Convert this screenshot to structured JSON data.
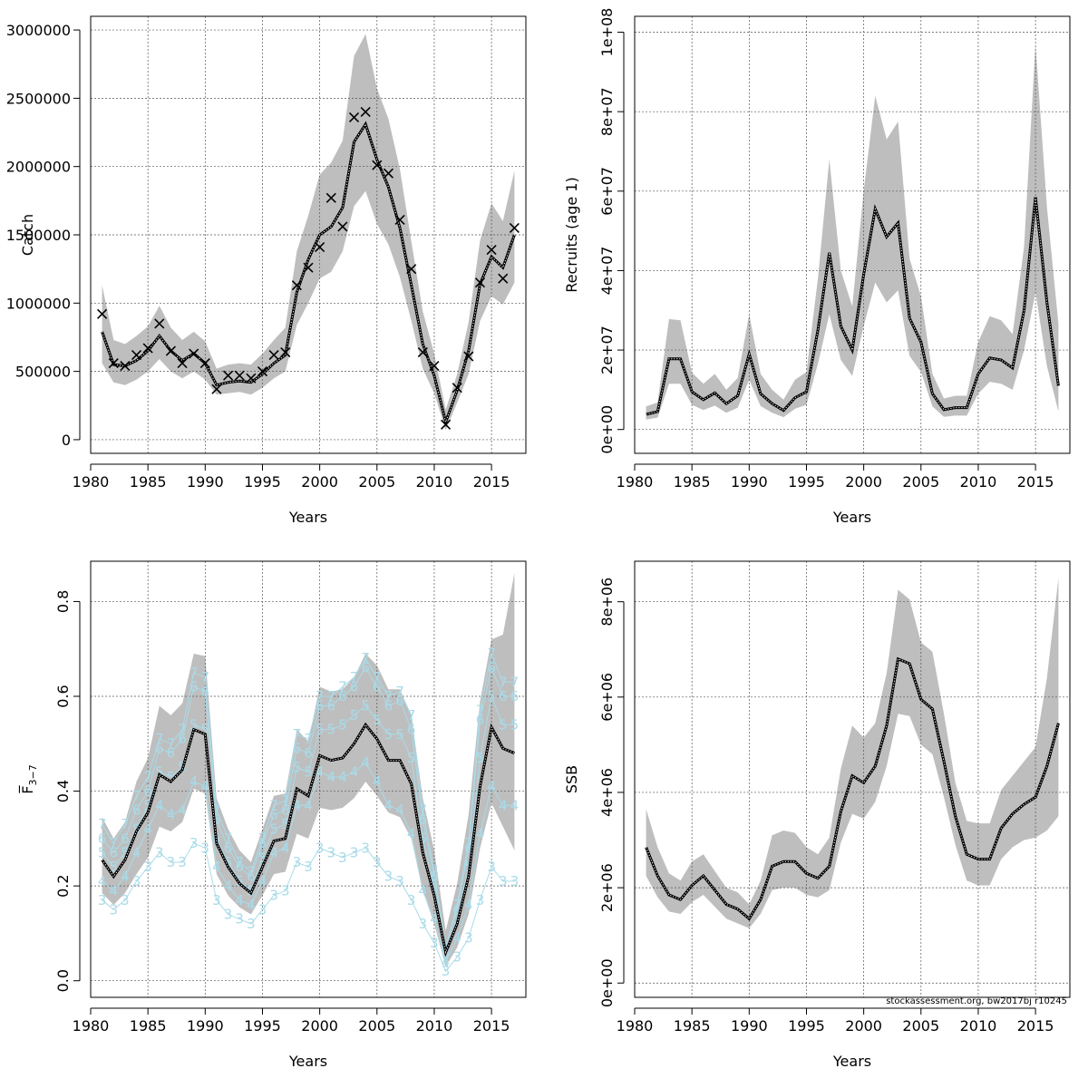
{
  "footer_note": "stockassessment.org, bw2017bj r10245",
  "chart_data": [
    {
      "type": "line",
      "xlabel": "Years",
      "ylabel": "Catch",
      "xlim": [
        1980,
        2018
      ],
      "ylim": [
        -100000,
        3100000
      ],
      "x_ticks": [
        1980,
        1985,
        1990,
        1995,
        2000,
        2005,
        2010,
        2015
      ],
      "y_ticks": [
        0,
        500000,
        1000000,
        1500000,
        2000000,
        2500000,
        3000000
      ],
      "y_tick_labels": [
        "0",
        "500000",
        "1000000",
        "1500000",
        "2000000",
        "2500000",
        "3000000"
      ],
      "grid": true,
      "x": [
        1981,
        1982,
        1983,
        1984,
        1985,
        1986,
        1987,
        1988,
        1989,
        1990,
        1991,
        1992,
        1993,
        1994,
        1995,
        1996,
        1997,
        1998,
        1999,
        2000,
        2001,
        2002,
        2003,
        2004,
        2005,
        2006,
        2007,
        2008,
        2009,
        2010,
        2011,
        2012,
        2013,
        2014,
        2015,
        2016,
        2017
      ],
      "series": [
        {
          "role": "estimate",
          "values": [
            790000,
            550000,
            540000,
            580000,
            650000,
            760000,
            650000,
            580000,
            630000,
            560000,
            400000,
            420000,
            430000,
            420000,
            480000,
            560000,
            620000,
            1080000,
            1320000,
            1500000,
            1560000,
            1700000,
            2180000,
            2310000,
            2050000,
            1850000,
            1550000,
            1130000,
            700000,
            470000,
            130000,
            360000,
            650000,
            1140000,
            1340000,
            1260000,
            1500000
          ]
        },
        {
          "role": "lower_ci",
          "values": [
            560000,
            420000,
            400000,
            440000,
            500000,
            590000,
            500000,
            450000,
            500000,
            440000,
            330000,
            340000,
            350000,
            330000,
            380000,
            450000,
            500000,
            840000,
            1000000,
            1180000,
            1230000,
            1380000,
            1710000,
            1820000,
            1580000,
            1430000,
            1190000,
            870000,
            520000,
            340000,
            70000,
            270000,
            480000,
            870000,
            1050000,
            990000,
            1150000
          ]
        },
        {
          "role": "upper_ci",
          "values": [
            1130000,
            730000,
            700000,
            760000,
            830000,
            980000,
            820000,
            730000,
            790000,
            720000,
            520000,
            550000,
            560000,
            550000,
            630000,
            730000,
            820000,
            1380000,
            1640000,
            1940000,
            2030000,
            2190000,
            2810000,
            2970000,
            2570000,
            2350000,
            1980000,
            1450000,
            940000,
            630000,
            220000,
            480000,
            860000,
            1460000,
            1730000,
            1600000,
            1970000
          ]
        },
        {
          "role": "observed",
          "values": [
            920000,
            560000,
            540000,
            620000,
            670000,
            850000,
            650000,
            560000,
            630000,
            560000,
            370000,
            470000,
            470000,
            450000,
            500000,
            620000,
            640000,
            1130000,
            1260000,
            1410000,
            1770000,
            1560000,
            2360000,
            2400000,
            2010000,
            1950000,
            1610000,
            1250000,
            640000,
            540000,
            110000,
            380000,
            610000,
            1150000,
            1390000,
            1180000,
            1550000
          ]
        }
      ]
    },
    {
      "type": "line",
      "xlabel": "Years",
      "ylabel": "Recruits (age 1)",
      "xlim": [
        1980,
        2018
      ],
      "ylim": [
        -6000000,
        104000000
      ],
      "x_ticks": [
        1980,
        1985,
        1990,
        1995,
        2000,
        2005,
        2010,
        2015
      ],
      "y_ticks": [
        0,
        20000000,
        40000000,
        60000000,
        80000000,
        100000000
      ],
      "y_tick_labels": [
        "0e+00",
        "2e+07",
        "4e+07",
        "6e+07",
        "8e+07",
        "1e+08"
      ],
      "grid": true,
      "x": [
        1981,
        1982,
        1983,
        1984,
        1985,
        1986,
        1987,
        1988,
        1989,
        1990,
        1991,
        1992,
        1993,
        1994,
        1995,
        1996,
        1997,
        1998,
        1999,
        2000,
        2001,
        2002,
        2003,
        2004,
        2005,
        2006,
        2007,
        2008,
        2009,
        2010,
        2011,
        2012,
        2013,
        2014,
        2015,
        2016,
        2017
      ],
      "series": [
        {
          "role": "estimate",
          "values": [
            3800000,
            4500000,
            17800000,
            17800000,
            9500000,
            7500000,
            9200000,
            6500000,
            8500000,
            19000000,
            9000000,
            6500000,
            4800000,
            8000000,
            9500000,
            25000000,
            44500000,
            26000000,
            20000000,
            39000000,
            55500000,
            48500000,
            52000000,
            28000000,
            22000000,
            9000000,
            5000000,
            5500000,
            5500000,
            14000000,
            18000000,
            17500000,
            15500000,
            30000000,
            58500000,
            32000000,
            11000000
          ]
        },
        {
          "role": "lower_ci",
          "values": [
            2500000,
            3000000,
            11500000,
            11500000,
            6200000,
            4900000,
            6000000,
            4200000,
            5500000,
            12500000,
            5900000,
            4200000,
            3100000,
            5200000,
            6200000,
            16500000,
            29000000,
            17500000,
            13500000,
            26000000,
            37000000,
            32000000,
            35000000,
            18500000,
            14500000,
            5800000,
            3200000,
            3500000,
            3500000,
            9000000,
            12000000,
            11500000,
            10000000,
            20000000,
            34500000,
            16000000,
            4500000
          ]
        },
        {
          "role": "upper_ci",
          "values": [
            5800000,
            6800000,
            27800000,
            27500000,
            14300000,
            11500000,
            14000000,
            10000000,
            13000000,
            29000000,
            14000000,
            10000000,
            7500000,
            12500000,
            14500000,
            38000000,
            68000000,
            40000000,
            31000000,
            60000000,
            84000000,
            73000000,
            77500000,
            43000000,
            33500000,
            14000000,
            7800000,
            8500000,
            8500000,
            22000000,
            28500000,
            27500000,
            24000000,
            46000000,
            97000000,
            56000000,
            26500000
          ]
        }
      ]
    },
    {
      "type": "line",
      "xlabel": "Years",
      "ylabel": "F̅",
      "ylabel_subscript": "3−7",
      "xlim": [
        1980,
        2018
      ],
      "ylim": [
        -0.035,
        0.885
      ],
      "x_ticks": [
        1980,
        1985,
        1990,
        1995,
        2000,
        2005,
        2010,
        2015
      ],
      "y_ticks": [
        0.0,
        0.2,
        0.4,
        0.6,
        0.8
      ],
      "y_tick_labels": [
        "0.0",
        "0.2",
        "0.4",
        "0.6",
        "0.8"
      ],
      "grid": true,
      "x": [
        1981,
        1982,
        1983,
        1984,
        1985,
        1986,
        1987,
        1988,
        1989,
        1990,
        1991,
        1992,
        1993,
        1994,
        1995,
        1996,
        1997,
        1998,
        1999,
        2000,
        2001,
        2002,
        2003,
        2004,
        2005,
        2006,
        2007,
        2008,
        2009,
        2010,
        2011,
        2012,
        2013,
        2014,
        2015,
        2016,
        2017
      ],
      "series": [
        {
          "role": "estimate",
          "values": [
            0.255,
            0.22,
            0.255,
            0.315,
            0.355,
            0.435,
            0.42,
            0.445,
            0.53,
            0.52,
            0.29,
            0.24,
            0.205,
            0.185,
            0.24,
            0.295,
            0.3,
            0.405,
            0.39,
            0.475,
            0.465,
            0.47,
            0.5,
            0.54,
            0.51,
            0.465,
            0.465,
            0.415,
            0.27,
            0.18,
            0.06,
            0.12,
            0.22,
            0.41,
            0.535,
            0.49,
            0.48
          ]
        },
        {
          "role": "lower_ci",
          "values": [
            0.185,
            0.16,
            0.185,
            0.225,
            0.26,
            0.325,
            0.315,
            0.335,
            0.405,
            0.395,
            0.225,
            0.18,
            0.155,
            0.14,
            0.18,
            0.225,
            0.23,
            0.31,
            0.3,
            0.365,
            0.36,
            0.365,
            0.385,
            0.42,
            0.39,
            0.355,
            0.345,
            0.3,
            0.19,
            0.12,
            0.03,
            0.07,
            0.14,
            0.28,
            0.375,
            0.325,
            0.275
          ]
        },
        {
          "role": "upper_ci",
          "values": [
            0.345,
            0.3,
            0.335,
            0.42,
            0.47,
            0.58,
            0.56,
            0.585,
            0.69,
            0.685,
            0.385,
            0.32,
            0.275,
            0.25,
            0.32,
            0.39,
            0.395,
            0.53,
            0.505,
            0.62,
            0.61,
            0.615,
            0.64,
            0.69,
            0.665,
            0.615,
            0.615,
            0.56,
            0.385,
            0.275,
            0.105,
            0.205,
            0.35,
            0.59,
            0.72,
            0.73,
            0.86
          ]
        },
        {
          "name": "3",
          "role": "age",
          "values": [
            0.17,
            0.15,
            0.17,
            0.21,
            0.24,
            0.27,
            0.25,
            0.25,
            0.29,
            0.28,
            0.17,
            0.14,
            0.13,
            0.12,
            0.15,
            0.18,
            0.19,
            0.25,
            0.24,
            0.28,
            0.27,
            0.26,
            0.27,
            0.28,
            0.25,
            0.22,
            0.21,
            0.17,
            0.12,
            0.08,
            0.02,
            0.05,
            0.09,
            0.17,
            0.24,
            0.21,
            0.21
          ]
        },
        {
          "name": "4",
          "role": "age",
          "values": [
            0.21,
            0.19,
            0.22,
            0.27,
            0.32,
            0.37,
            0.35,
            0.36,
            0.42,
            0.41,
            0.24,
            0.2,
            0.17,
            0.16,
            0.21,
            0.27,
            0.28,
            0.37,
            0.37,
            0.44,
            0.43,
            0.43,
            0.44,
            0.46,
            0.42,
            0.37,
            0.36,
            0.31,
            0.19,
            0.13,
            0.04,
            0.09,
            0.16,
            0.31,
            0.41,
            0.37,
            0.37
          ]
        },
        {
          "name": "5",
          "role": "age",
          "values": [
            0.27,
            0.24,
            0.27,
            0.32,
            0.37,
            0.44,
            0.43,
            0.45,
            0.54,
            0.53,
            0.3,
            0.25,
            0.21,
            0.19,
            0.26,
            0.32,
            0.33,
            0.45,
            0.44,
            0.53,
            0.53,
            0.54,
            0.56,
            0.58,
            0.55,
            0.52,
            0.52,
            0.47,
            0.3,
            0.2,
            0.06,
            0.13,
            0.24,
            0.47,
            0.6,
            0.54,
            0.54
          ]
        },
        {
          "name": "6",
          "role": "age",
          "values": [
            0.3,
            0.27,
            0.3,
            0.36,
            0.4,
            0.49,
            0.48,
            0.51,
            0.62,
            0.61,
            0.34,
            0.28,
            0.24,
            0.22,
            0.29,
            0.35,
            0.36,
            0.49,
            0.48,
            0.58,
            0.58,
            0.6,
            0.62,
            0.66,
            0.62,
            0.58,
            0.59,
            0.53,
            0.34,
            0.22,
            0.07,
            0.15,
            0.28,
            0.55,
            0.66,
            0.6,
            0.6
          ]
        },
        {
          "name": "7",
          "role": "age",
          "values": [
            0.33,
            0.29,
            0.33,
            0.39,
            0.43,
            0.51,
            0.5,
            0.53,
            0.65,
            0.64,
            0.36,
            0.3,
            0.25,
            0.23,
            0.3,
            0.37,
            0.38,
            0.52,
            0.51,
            0.6,
            0.6,
            0.62,
            0.64,
            0.68,
            0.64,
            0.6,
            0.61,
            0.56,
            0.36,
            0.23,
            0.07,
            0.16,
            0.29,
            0.57,
            0.69,
            0.63,
            0.63
          ]
        }
      ]
    },
    {
      "type": "line",
      "xlabel": "Years",
      "ylabel": "SSB",
      "xlim": [
        1980,
        2018
      ],
      "ylim": [
        -300000,
        8850000
      ],
      "x_ticks": [
        1980,
        1985,
        1990,
        1995,
        2000,
        2005,
        2010,
        2015
      ],
      "y_ticks": [
        0,
        2000000,
        4000000,
        6000000,
        8000000
      ],
      "y_tick_labels": [
        "0e+00",
        "2e+06",
        "4e+06",
        "6e+06",
        "8e+06"
      ],
      "grid": true,
      "x": [
        1981,
        1982,
        1983,
        1984,
        1985,
        1986,
        1987,
        1988,
        1989,
        1990,
        1991,
        1992,
        1993,
        1994,
        1995,
        1996,
        1997,
        1998,
        1999,
        2000,
        2001,
        2002,
        2003,
        2004,
        2005,
        2006,
        2007,
        2008,
        2009,
        2010,
        2011,
        2012,
        2013,
        2014,
        2015,
        2016,
        2017
      ],
      "series": [
        {
          "role": "estimate",
          "values": [
            2850000,
            2250000,
            1850000,
            1750000,
            2050000,
            2250000,
            1950000,
            1650000,
            1550000,
            1350000,
            1750000,
            2450000,
            2550000,
            2550000,
            2300000,
            2200000,
            2450000,
            3600000,
            4350000,
            4200000,
            4550000,
            5400000,
            6800000,
            6700000,
            5950000,
            5750000,
            4650000,
            3500000,
            2700000,
            2600000,
            2600000,
            3250000,
            3550000,
            3750000,
            3900000,
            4550000,
            5450000
          ]
        },
        {
          "role": "lower_ci",
          "values": [
            2250000,
            1800000,
            1500000,
            1450000,
            1700000,
            1850000,
            1600000,
            1350000,
            1250000,
            1150000,
            1450000,
            1950000,
            2000000,
            2000000,
            1850000,
            1800000,
            1950000,
            2950000,
            3550000,
            3450000,
            3800000,
            4550000,
            5650000,
            5600000,
            5000000,
            4800000,
            3900000,
            2900000,
            2150000,
            2050000,
            2050000,
            2600000,
            2850000,
            3000000,
            3050000,
            3200000,
            3500000
          ]
        },
        {
          "role": "upper_ci",
          "values": [
            3650000,
            2850000,
            2300000,
            2150000,
            2550000,
            2700000,
            2350000,
            2000000,
            1900000,
            1650000,
            2150000,
            3100000,
            3200000,
            3150000,
            2850000,
            2700000,
            3050000,
            4500000,
            5400000,
            5150000,
            5450000,
            6500000,
            8250000,
            8050000,
            7150000,
            6950000,
            5650000,
            4200000,
            3400000,
            3350000,
            3350000,
            4050000,
            4350000,
            4650000,
            4950000,
            6400000,
            8500000
          ]
        }
      ]
    }
  ]
}
